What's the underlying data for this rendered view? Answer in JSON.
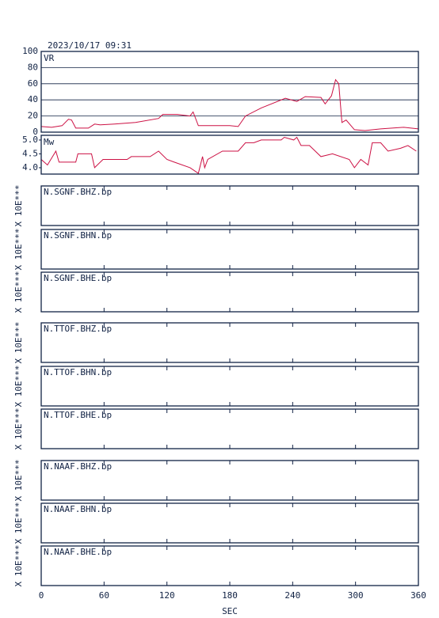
{
  "date": "2023/10/17 09:31",
  "chart_data": [
    {
      "type": "line",
      "label": "VR",
      "color": "#cc1144",
      "xlim": [
        0,
        360
      ],
      "ylim": [
        0,
        100
      ],
      "yticks": [
        0,
        20,
        40,
        60,
        80,
        100
      ],
      "grid": true,
      "x": [
        0,
        10,
        20,
        26,
        29,
        33,
        45,
        51,
        56,
        70,
        90,
        112,
        116,
        130,
        142,
        145,
        150,
        165,
        180,
        188,
        195,
        210,
        233,
        244,
        252,
        267,
        271,
        277,
        281,
        284,
        287,
        291,
        299,
        309,
        324,
        346,
        360
      ],
      "values": [
        7,
        6,
        8,
        16,
        15,
        5,
        5,
        10,
        9,
        10,
        12,
        17,
        22,
        22,
        20,
        25,
        8,
        8,
        8,
        7,
        20,
        30,
        42,
        38,
        44,
        43,
        35,
        45,
        65,
        60,
        12,
        15,
        3,
        2,
        4,
        6,
        4
      ]
    },
    {
      "type": "line",
      "label": "Mw",
      "color": "#cc1144",
      "xlim": [
        0,
        360
      ],
      "ylim": [
        3.77,
        5.17
      ],
      "yticks": [
        {
          "value": 4,
          "label": "4.0"
        },
        {
          "value": 4.5,
          "label": "4.5"
        },
        {
          "value": 5,
          "label": "5.0"
        }
      ],
      "grid": false,
      "x": [
        0,
        6,
        14,
        17,
        33,
        35,
        48,
        51,
        59,
        82,
        86,
        104,
        112,
        120,
        127,
        142,
        150,
        154,
        156,
        159,
        173,
        188,
        195,
        203,
        210,
        229,
        232,
        241,
        244,
        248,
        256,
        267,
        278,
        294,
        299,
        305,
        312,
        316,
        324,
        331,
        343,
        350,
        358
      ],
      "values": [
        4.3,
        4.1,
        4.6,
        4.2,
        4.2,
        4.5,
        4.5,
        4.0,
        4.3,
        4.3,
        4.4,
        4.4,
        4.6,
        4.3,
        4.2,
        4.0,
        3.8,
        4.4,
        4.0,
        4.3,
        4.6,
        4.6,
        4.9,
        4.9,
        5.0,
        5.0,
        5.1,
        5.0,
        5.1,
        4.8,
        4.8,
        4.4,
        4.5,
        4.3,
        4.0,
        4.3,
        4.1,
        4.9,
        4.9,
        4.6,
        4.7,
        4.8,
        4.6
      ]
    },
    {
      "type": "waveform",
      "xlim": [
        0,
        360
      ],
      "xticks": [
        0,
        60,
        120,
        180,
        240,
        300,
        360
      ],
      "xlabel": "SEC",
      "panels": [
        {
          "label": "N.SGNF.BHZ.bp",
          "ylabel": "X 10E***"
        },
        {
          "label": "N.SGNF.BHN.bp",
          "ylabel": "X 10E***"
        },
        {
          "label": "N.SGNF.BHE.bp",
          "ylabel": "X 10E***"
        },
        {
          "label": "N.TTOF.BHZ.bp",
          "ylabel": "X 10E***"
        },
        {
          "label": "N.TTOF.BHN.bp",
          "ylabel": "X 10E***"
        },
        {
          "label": "N.TTOF.BHE.bp",
          "ylabel": "X 10E***"
        },
        {
          "label": "N.NAAF.BHZ.bp",
          "ylabel": "X 10E***"
        },
        {
          "label": "N.NAAF.BHN.bp",
          "ylabel": "X 10E***"
        },
        {
          "label": "N.NAAF.BHE.bp",
          "ylabel": "X 10E***"
        }
      ]
    }
  ]
}
